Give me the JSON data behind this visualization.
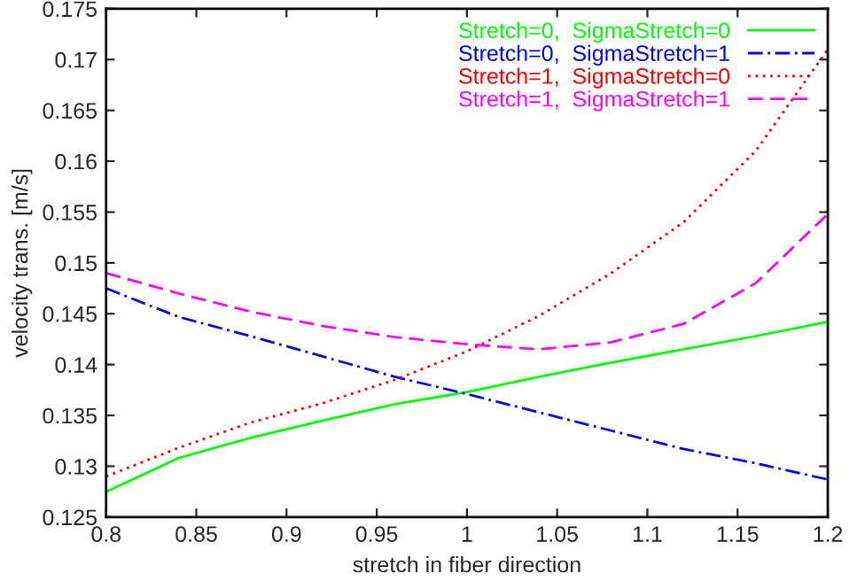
{
  "chart_data": {
    "type": "line",
    "xlabel": "stretch in fiber direction",
    "ylabel": "velocity trans. [m/s]",
    "x": [
      0.8,
      0.84,
      0.88,
      0.92,
      0.96,
      1.0,
      1.04,
      1.08,
      1.12,
      1.16,
      1.2
    ],
    "xlim": [
      0.8,
      1.2
    ],
    "xticks": [
      {
        "value": 0.8,
        "label": "0.8"
      },
      {
        "value": 0.85,
        "label": "0.85"
      },
      {
        "value": 0.9,
        "label": "0.9"
      },
      {
        "value": 0.95,
        "label": "0.95"
      },
      {
        "value": 1.0,
        "label": "1"
      },
      {
        "value": 1.05,
        "label": "1.05"
      },
      {
        "value": 1.1,
        "label": "1.1"
      },
      {
        "value": 1.15,
        "label": "1.15"
      },
      {
        "value": 1.2,
        "label": "1.2"
      }
    ],
    "ylim": [
      0.125,
      0.175
    ],
    "yticks": [
      0.125,
      0.13,
      0.135,
      0.14,
      0.145,
      0.15,
      0.155,
      0.16,
      0.165,
      0.17,
      0.175
    ],
    "grid": false,
    "legend": "top right",
    "marker": "none",
    "series": [
      {
        "name": "Stretch=0,  SigmaStretch=0",
        "color": "#00ff00",
        "line_style": "solid",
        "values": [
          0.1275,
          0.1308,
          0.1328,
          0.1345,
          0.1361,
          0.1373,
          0.1388,
          0.1402,
          0.1415,
          0.1428,
          0.1442
        ]
      },
      {
        "name": "Stretch=0,  SigmaStretch=1",
        "color": "#0000ff",
        "line_style": "dashdot",
        "values": [
          0.1475,
          0.1447,
          0.1428,
          0.1408,
          0.1388,
          0.1371,
          0.1353,
          0.1335,
          0.1317,
          0.1303,
          0.1287
        ]
      },
      {
        "name": "Stretch=1,  SigmaStretch=0",
        "color": "#ff0000",
        "line_style": "dotted",
        "values": [
          0.129,
          0.1318,
          0.1343,
          0.1362,
          0.1385,
          0.1413,
          0.1448,
          0.149,
          0.154,
          0.161,
          0.171
        ]
      },
      {
        "name": "Stretch=1,  SigmaStretch=1",
        "color": "#ff00ff",
        "line_style": "dashed",
        "values": [
          0.149,
          0.147,
          0.1452,
          0.1438,
          0.1427,
          0.142,
          0.1415,
          0.1422,
          0.144,
          0.148,
          0.1548
        ]
      }
    ]
  }
}
